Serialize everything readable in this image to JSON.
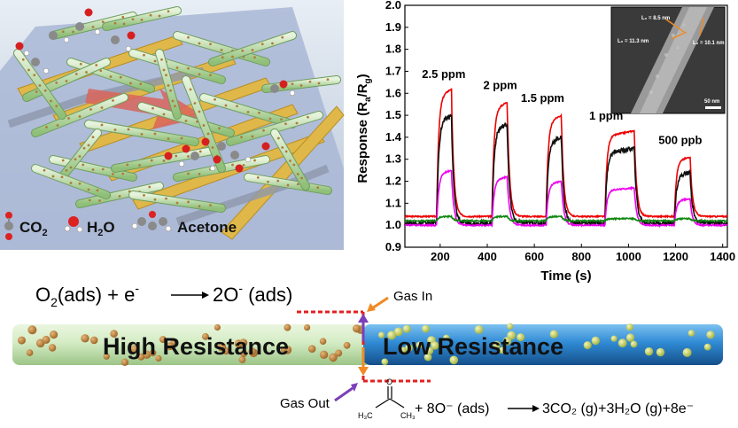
{
  "schematic": {
    "legend": {
      "co2": "CO",
      "co2_sub": "2",
      "h2o_pre": "H",
      "h2o_sub": "2",
      "h2o_post": "O",
      "acetone": "Acetone"
    }
  },
  "chart_data": {
    "type": "line",
    "xlabel": "Time (s)",
    "ylabel_main": "Response (R",
    "ylabel_sub_a": "a",
    "ylabel_mid": "/R",
    "ylabel_sub_g": "g",
    "ylabel_end": ")",
    "xlim": [
      50,
      1420
    ],
    "ylim": [
      0.9,
      2.0
    ],
    "xticks": [
      "200",
      "400",
      "600",
      "800",
      "1000",
      "1200",
      "1400"
    ],
    "yticks": [
      "0.9",
      "1.0",
      "1.1",
      "1.2",
      "1.3",
      "1.4",
      "1.5",
      "1.6",
      "1.7",
      "1.8",
      "1.9",
      "2.0"
    ],
    "pulses": [
      {
        "label": "2.5 ppm",
        "on": 185,
        "off": 248
      },
      {
        "label": "2 ppm",
        "on": 420,
        "off": 485
      },
      {
        "label": "1.5 ppm",
        "on": 650,
        "off": 715
      },
      {
        "label": "1 ppm",
        "on": 900,
        "off": 1025
      },
      {
        "label": "500 ppb",
        "on": 1195,
        "off": 1262
      }
    ],
    "series": [
      {
        "color": "#ee0000",
        "peaks": [
          1.62,
          1.56,
          1.5,
          1.43,
          1.31
        ]
      },
      {
        "color": "#111111",
        "peaks": [
          1.5,
          1.46,
          1.4,
          1.35,
          1.24
        ]
      },
      {
        "color": "#ee00ee",
        "peaks": [
          1.25,
          1.22,
          1.2,
          1.17,
          1.12
        ]
      },
      {
        "color": "#118811",
        "peaks": [
          1.04,
          1.04,
          1.04,
          1.03,
          1.03
        ]
      }
    ],
    "inset": {
      "labels": [
        "L₀ = 8.5 nm",
        "L₀ = 11.3 nm",
        "L₀ = 10.1 nm"
      ],
      "scale_bar": "50 nm"
    }
  },
  "mechanism": {
    "eq1": {
      "o": "O",
      "o_sub": "2",
      "ads": "(ads) + e",
      "e_sup": "-",
      "product": "2O",
      "product_sup": "-",
      "product_end": " (ads)"
    },
    "gas_in": "Gas In",
    "gas_out": "Gas Out",
    "high": "High Resistance",
    "low": "Low Resistance",
    "acetone_h3c": "H₃C",
    "acetone_ch3": "CH₃",
    "acetone_o": "O",
    "eq2": "+ 8O⁻ (ads)",
    "eq2_prod": "3CO₂ (g)+3H₂O (g)+8e⁻"
  },
  "colors": {
    "high_rod": "#c9e6b8",
    "low_rod": "#2a7fc8",
    "dash": "#e32020",
    "arrow_orange": "#f08a24",
    "arrow_purple": "#7b3fb8"
  }
}
